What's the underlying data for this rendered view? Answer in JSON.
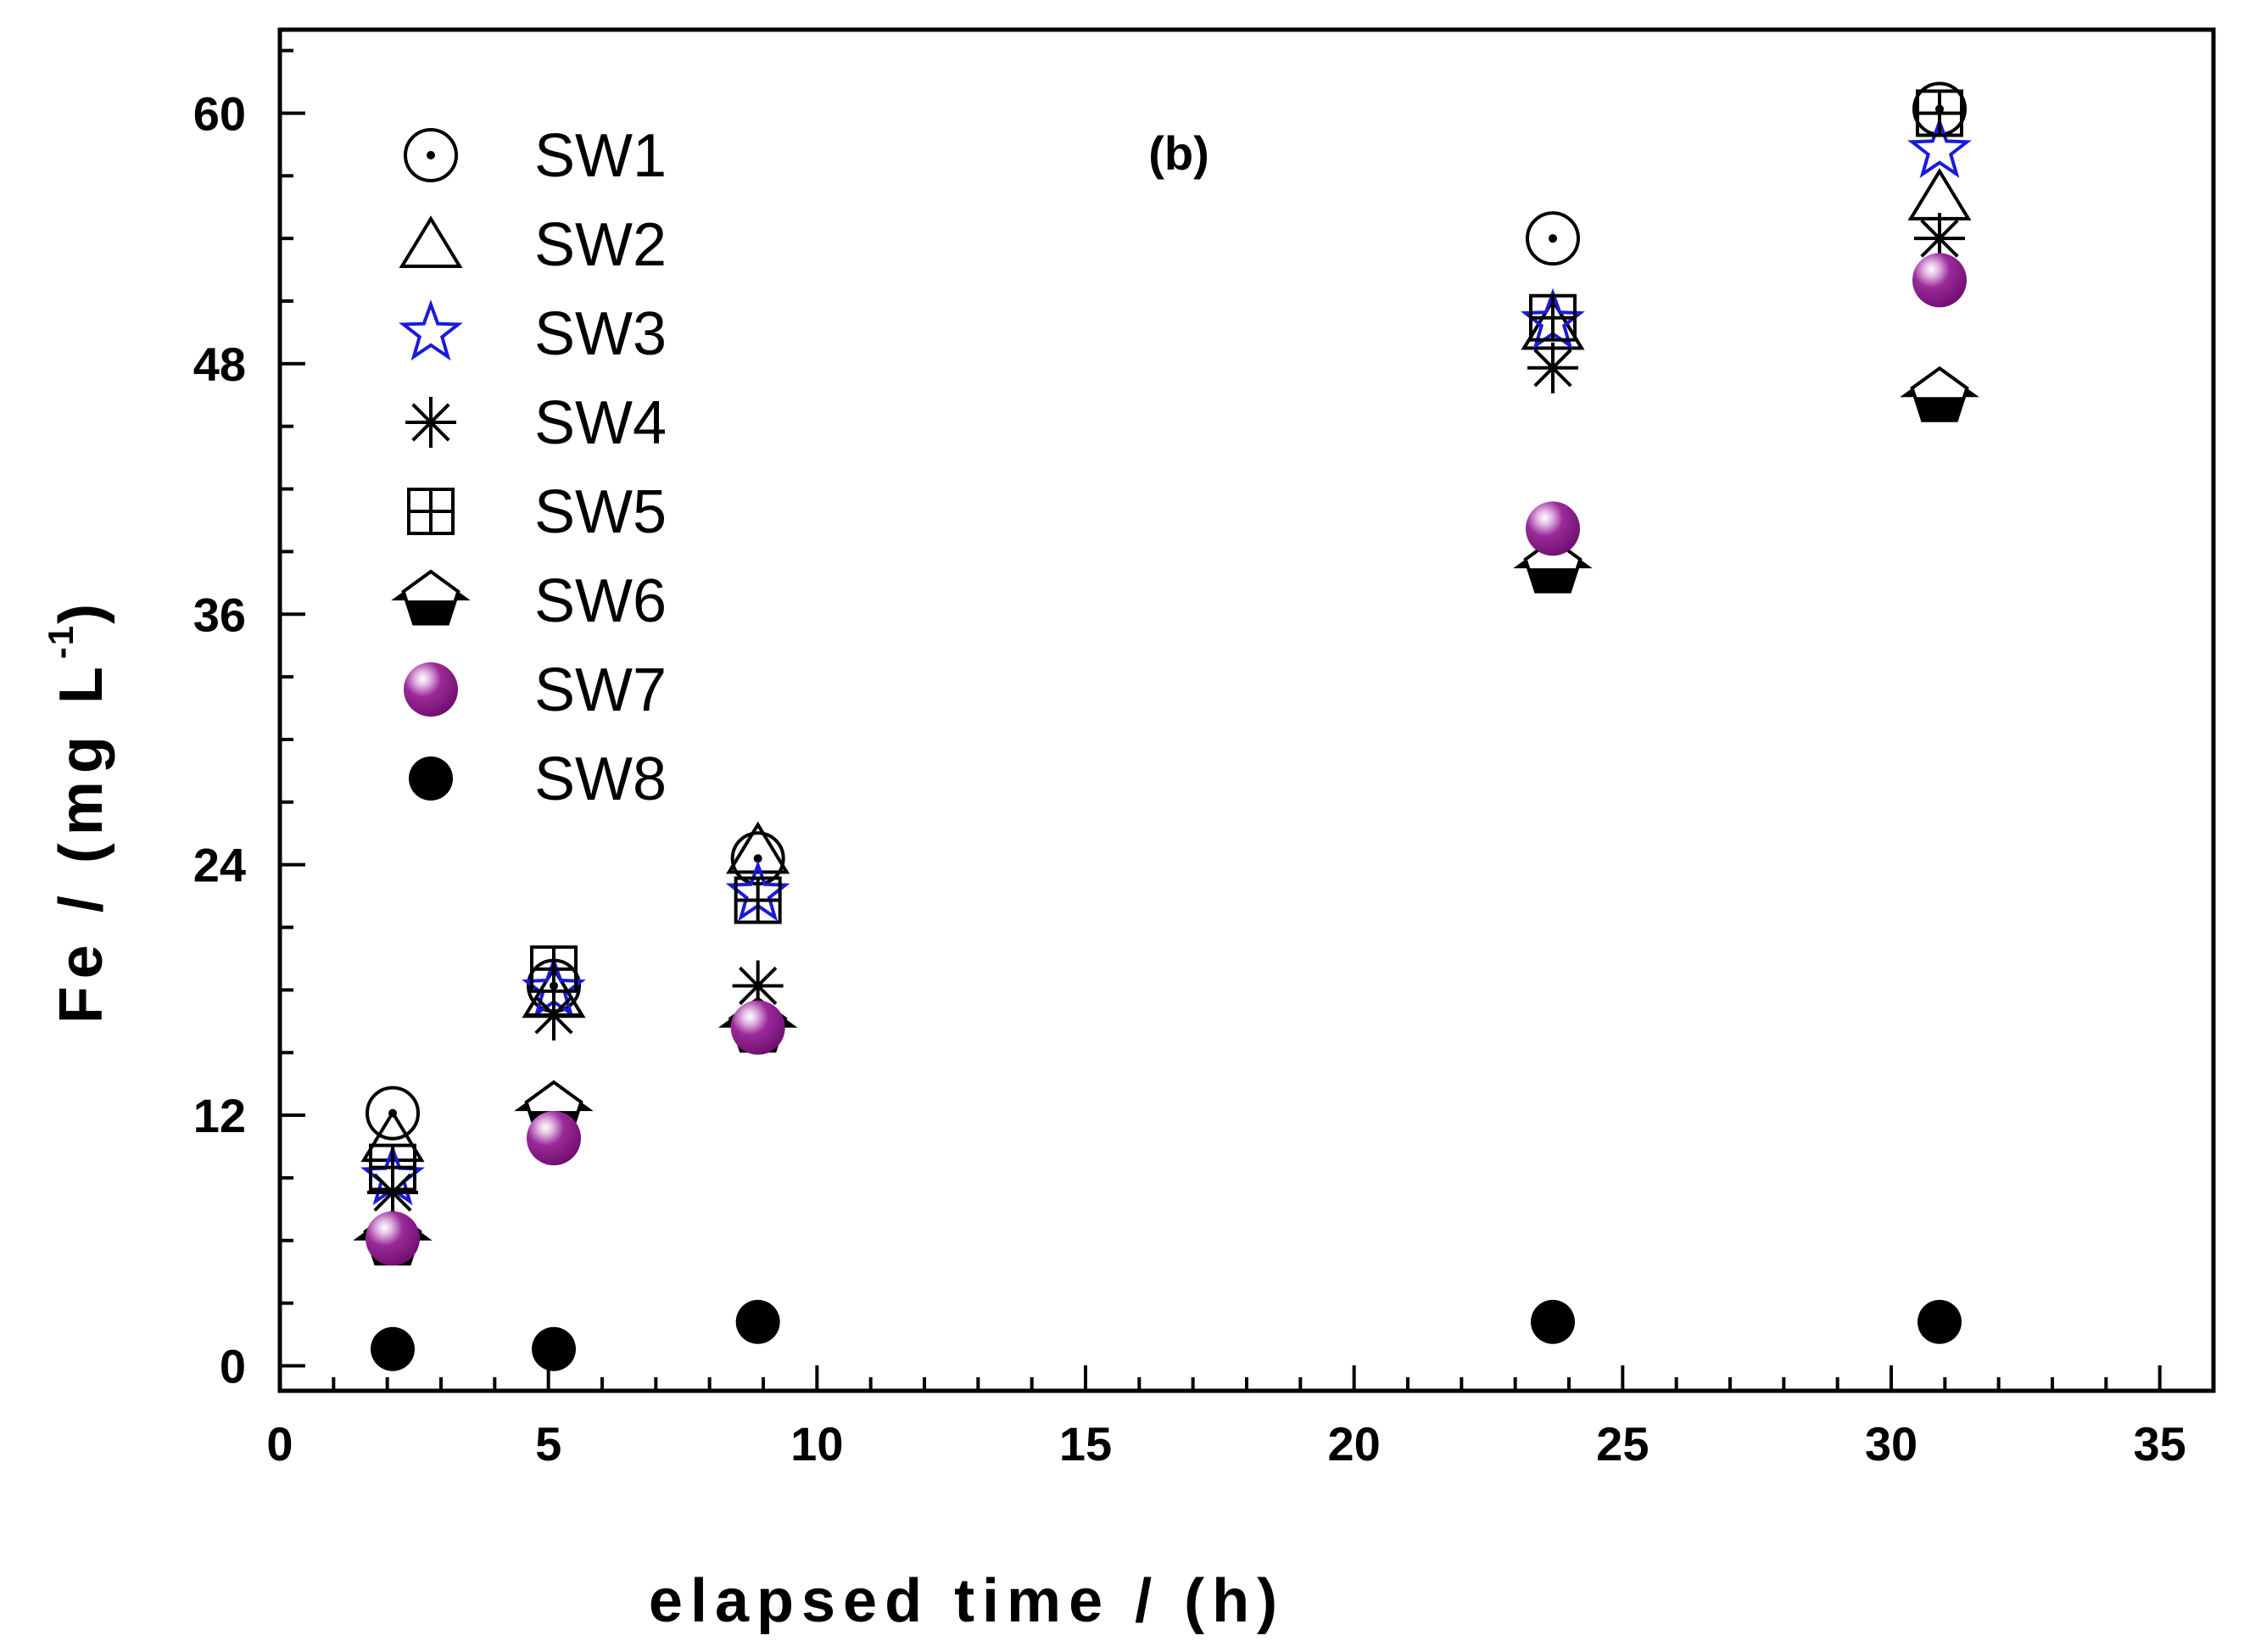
{
  "chart_data": {
    "type": "scatter",
    "title": "",
    "panel_label": "(b)",
    "xlabel": "elapsed time / (h)",
    "ylabel_main": "Fe / (mg L",
    "ylabel_sup": "-1",
    "ylabel_close": ")",
    "xlim": [
      0,
      36
    ],
    "ylim": [
      -1.2,
      64
    ],
    "x_ticks": [
      0,
      5,
      10,
      15,
      20,
      25,
      30,
      35
    ],
    "x_tick_labels": [
      "0",
      "5",
      "10",
      "15",
      "20",
      "25",
      "30",
      "35"
    ],
    "y_ticks": [
      0,
      12,
      24,
      36,
      48,
      60
    ],
    "y_tick_labels": [
      "0",
      "12",
      "24",
      "36",
      "48",
      "60"
    ],
    "grid": false,
    "legend_position": "top-left",
    "series": [
      {
        "name": "SW1",
        "marker": "circle-dot",
        "color": "#000000",
        "x": [
          2.1,
          5.1,
          8.9,
          23.7,
          30.9
        ],
        "y": [
          12.1,
          18.2,
          24.3,
          54.0,
          60.2
        ]
      },
      {
        "name": "SW2",
        "marker": "triangle",
        "color": "#000000",
        "x": [
          2.1,
          5.1,
          8.9,
          23.7,
          30.9
        ],
        "y": [
          10.9,
          17.8,
          24.7,
          49.8,
          56.0
        ]
      },
      {
        "name": "SW3",
        "marker": "star",
        "color": "#1a1adb",
        "x": [
          2.1,
          5.1,
          8.9,
          23.7,
          30.9
        ],
        "y": [
          9.0,
          18.0,
          22.6,
          50.0,
          58.2
        ]
      },
      {
        "name": "SW4",
        "marker": "asterisk",
        "color": "#000000",
        "x": [
          2.1,
          5.1,
          8.9,
          23.7,
          30.9
        ],
        "y": [
          8.3,
          16.8,
          18.2,
          47.8,
          54.0
        ]
      },
      {
        "name": "SW5",
        "marker": "square-plus",
        "color": "#000000",
        "x": [
          2.1,
          5.1,
          8.9,
          23.7,
          30.9
        ],
        "y": [
          9.5,
          19.0,
          22.3,
          50.2,
          60.0
        ]
      },
      {
        "name": "SW6",
        "marker": "pentagon-half",
        "color": "#000000",
        "x": [
          2.1,
          5.1,
          8.9,
          23.7,
          30.9
        ],
        "y": [
          6.0,
          12.2,
          16.2,
          38.2,
          46.4
        ]
      },
      {
        "name": "SW7",
        "marker": "sphere",
        "color": "#8a1a8a",
        "x": [
          2.1,
          5.1,
          8.9,
          23.7,
          30.9
        ],
        "y": [
          6.1,
          10.9,
          16.2,
          40.1,
          52.0
        ]
      },
      {
        "name": "SW8",
        "marker": "filled-circle",
        "color": "#000000",
        "x": [
          2.1,
          5.1,
          8.9,
          23.7,
          30.9
        ],
        "y": [
          0.8,
          0.8,
          2.1,
          2.1,
          2.1
        ]
      }
    ]
  }
}
